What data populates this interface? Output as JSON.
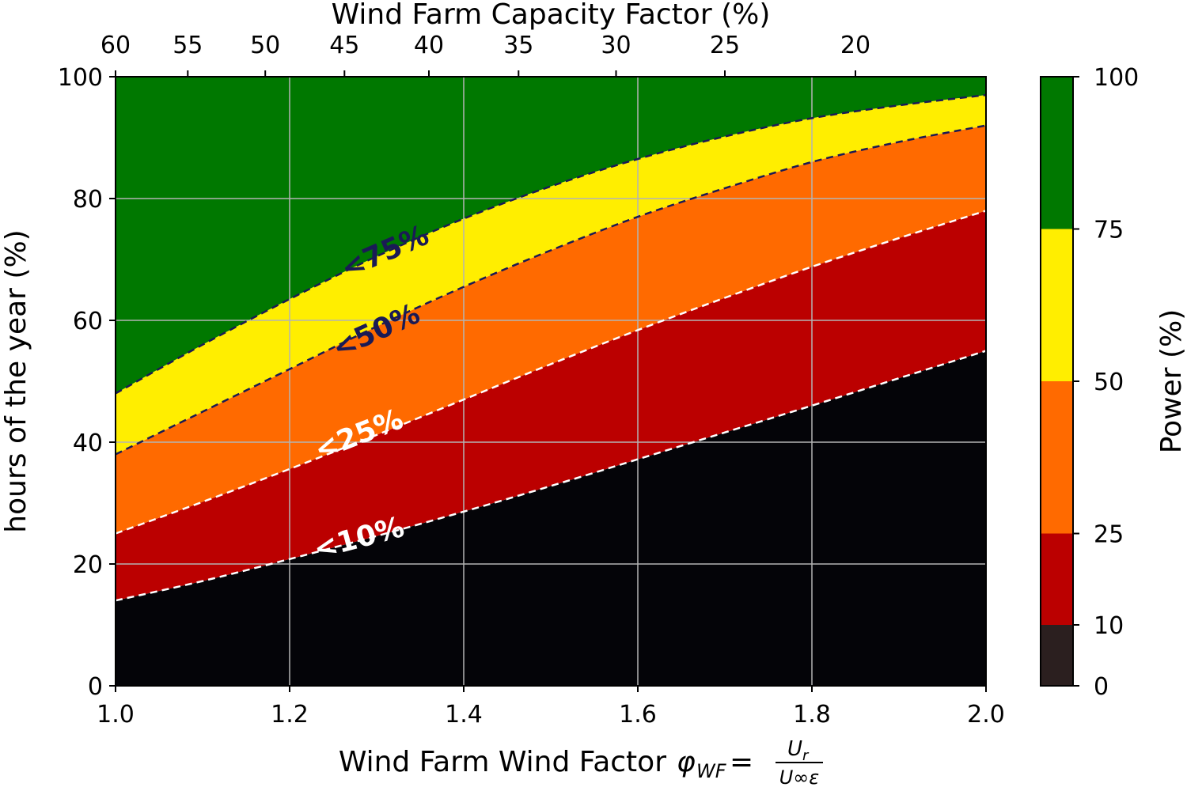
{
  "chart_data": {
    "type": "filled-contour",
    "x_label": "Wind Farm Wind Factor",
    "x_label_formula": {
      "phi": "φ",
      "sub": "WF",
      "equals": "=",
      "numerator": "U",
      "numerator_sub": "r",
      "denominator": "U∞ε"
    },
    "y_label": "hours of the year (%)",
    "top_label": "Wind Farm Capacity Factor (%)",
    "colorbar_label": "Power (%)",
    "xlim": [
      1.0,
      2.0
    ],
    "ylim": [
      0,
      100
    ],
    "grid": true,
    "x_ticks": [
      1.0,
      1.2,
      1.4,
      1.6,
      1.8,
      2.0
    ],
    "x_tick_labels": [
      "1.0",
      "1.2",
      "1.4",
      "1.6",
      "1.8",
      "2.0"
    ],
    "y_ticks": [
      0,
      20,
      40,
      60,
      80,
      100
    ],
    "y_tick_labels": [
      "0",
      "20",
      "40",
      "60",
      "80",
      "100"
    ],
    "top_ticks": [
      {
        "label": "60",
        "x": 1.0
      },
      {
        "label": "55",
        "x": 1.083
      },
      {
        "label": "50",
        "x": 1.172
      },
      {
        "label": "45",
        "x": 1.263
      },
      {
        "label": "40",
        "x": 1.36
      },
      {
        "label": "35",
        "x": 1.463
      },
      {
        "label": "30",
        "x": 1.575
      },
      {
        "label": "25",
        "x": 1.7
      },
      {
        "label": "20",
        "x": 1.85
      }
    ],
    "colorbar": {
      "ticks": [
        "0",
        "10",
        "25",
        "50",
        "75",
        "100"
      ],
      "bands": [
        {
          "from": 0,
          "to": 10,
          "color": "#2b1f1f"
        },
        {
          "from": 10,
          "to": 25,
          "color": "#bb0000"
        },
        {
          "from": 25,
          "to": 50,
          "color": "#ff6a00"
        },
        {
          "from": 50,
          "to": 75,
          "color": "#ffee00"
        },
        {
          "from": 75,
          "to": 100,
          "color": "#007800"
        }
      ]
    },
    "region_colors": [
      "#040408",
      "#bb0000",
      "#ff6a00",
      "#ffee00",
      "#007800"
    ],
    "x": [
      1.0,
      1.1,
      1.2,
      1.3,
      1.4,
      1.5,
      1.6,
      1.7,
      1.8,
      1.9,
      2.0
    ],
    "contours": [
      {
        "level": "10%",
        "label": "<10%",
        "line_color": "#ffffff",
        "label_color": "#ffffff",
        "label_x": 1.28,
        "label_y": 24,
        "y": [
          14,
          17.2,
          20.8,
          24.6,
          28.6,
          32.8,
          37.2,
          41.6,
          46.0,
          50.5,
          55.0
        ]
      },
      {
        "level": "25%",
        "label": "<25%",
        "line_color": "#ffffff",
        "label_color": "#ffffff",
        "label_x": 1.28,
        "label_y": 41,
        "y": [
          25,
          30.2,
          35.6,
          41.2,
          47.0,
          52.8,
          58.4,
          63.7,
          68.8,
          73.5,
          78.0
        ]
      },
      {
        "level": "50%",
        "label": "<50%",
        "line_color": "#1a1a55",
        "label_color": "#1a1a55",
        "label_x": 1.3,
        "label_y": 58,
        "y": [
          38,
          45.0,
          52.0,
          59.0,
          65.5,
          71.5,
          77.0,
          81.7,
          86.0,
          89.3,
          92.0
        ]
      },
      {
        "level": "75%",
        "label": "<75%",
        "line_color": "#1a1a55",
        "label_color": "#1a1a55",
        "label_x": 1.31,
        "label_y": 71,
        "y": [
          48,
          56.0,
          63.5,
          70.5,
          76.7,
          82.0,
          86.5,
          90.2,
          93.2,
          95.3,
          97.0
        ]
      }
    ]
  }
}
